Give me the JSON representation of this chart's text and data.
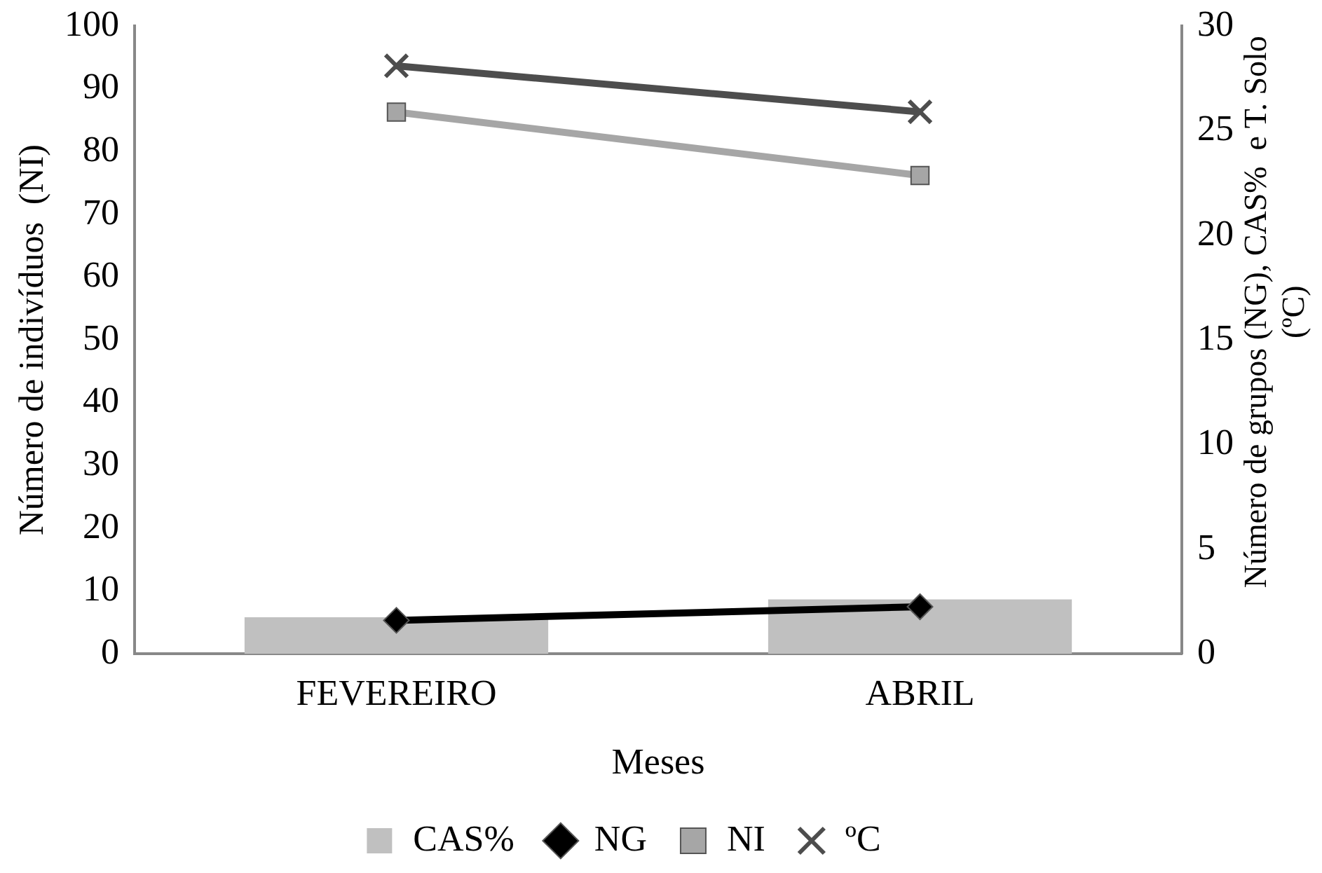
{
  "chart_data": {
    "type": "bar",
    "xlabel": "Meses",
    "ylabel": "Número de indivíduos  (NI)",
    "y2label": "Número de grupos (NG), CAS%  e T. Solo\n(ºC)",
    "categories": [
      "FEVEREIRO",
      "ABRIL"
    ],
    "series": [
      {
        "name": "CAS%",
        "color": "#c0c0c0",
        "values": [
          1.75,
          2.6
        ],
        "axis": "y2"
      },
      {
        "name": "NG",
        "type": "line",
        "color": "#000000",
        "values": [
          1.6,
          2.25
        ],
        "axis": "y2",
        "marker": "diamond"
      },
      {
        "name": "NI",
        "type": "line",
        "color": "#a6a6a6",
        "values": [
          86.3,
          76.2
        ],
        "marker": "square"
      },
      {
        "name": "ºC",
        "type": "line",
        "color": "#4d4d4d",
        "values": [
          28.1,
          25.9
        ],
        "axis": "y2",
        "marker": "cross"
      }
    ],
    "ylim": [
      0,
      100
    ],
    "yticks": [
      0,
      10,
      20,
      30,
      40,
      50,
      60,
      70,
      80,
      90,
      100
    ],
    "y2lim": [
      0,
      30
    ],
    "y2ticks": [
      0,
      5,
      10,
      15,
      20,
      25,
      30
    ],
    "grid": false,
    "legend": "bottom"
  }
}
